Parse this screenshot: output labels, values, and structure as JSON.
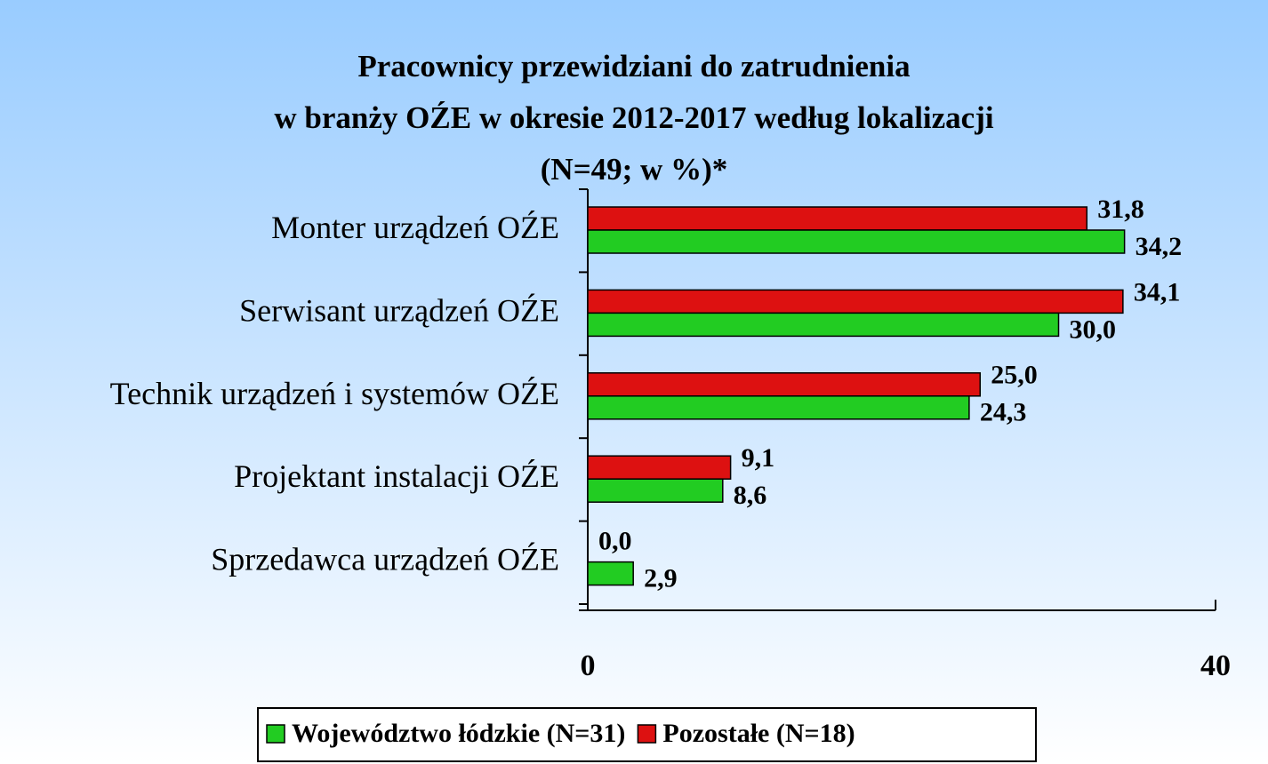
{
  "chart_data": {
    "type": "barh",
    "title": [
      "Pracownicy przewidziani do zatrudnienia",
      "w branży OŹE w okresie 2012-2017 według lokalizacji",
      "(N=49; w %)*"
    ],
    "categories": [
      "Monter urządzeń OŹE",
      "Serwisant urządzeń OŹE",
      "Technik urządzeń i systemów OŹE",
      "Projektant instalacji OŹE",
      "Sprzedawca urządzeń OŹE"
    ],
    "series": [
      {
        "name": "Województwo łódzkie (N=31)",
        "color": "#22cc22",
        "values": [
          34.2,
          30.0,
          24.3,
          8.6,
          2.9
        ],
        "value_labels": [
          "34,2",
          "30,0",
          "24,3",
          "8,6",
          "2,9"
        ]
      },
      {
        "name": "Pozostałe (N=18)",
        "color": "#dd1111",
        "values": [
          31.8,
          34.1,
          25.0,
          9.1,
          0.0
        ],
        "value_labels": [
          "31,8",
          "34,1",
          "25,0",
          "9,1",
          "0,0"
        ]
      }
    ],
    "xlim": [
      0,
      40
    ],
    "xticks": [
      0,
      40
    ],
    "legend": "bottom"
  }
}
